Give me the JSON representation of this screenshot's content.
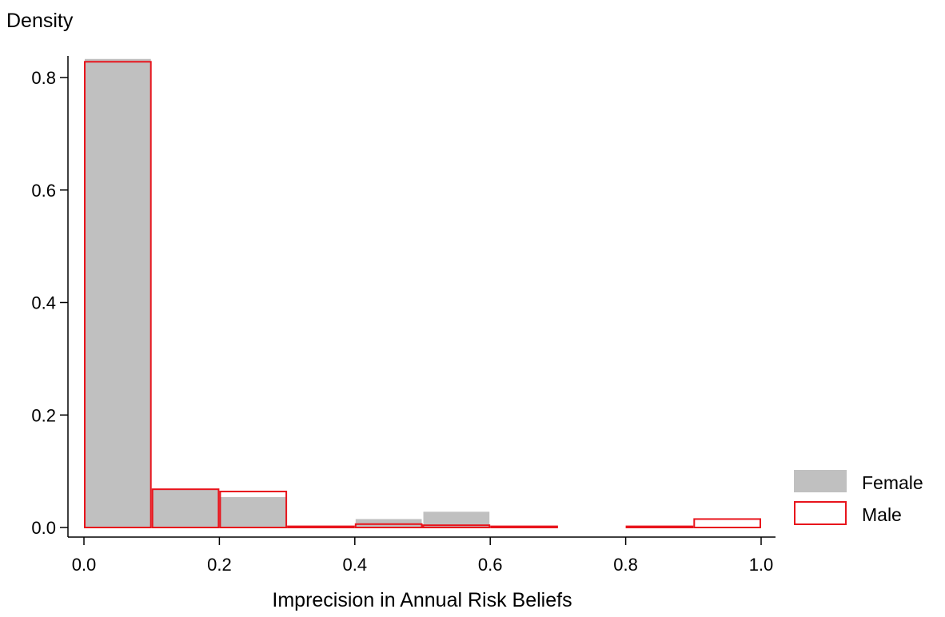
{
  "chart_data": {
    "type": "bar",
    "xlabel": "Imprecision in Annual Risk Beliefs",
    "ylabel": "Density",
    "xlim": [
      0,
      1
    ],
    "ylim": [
      0,
      0.85
    ],
    "bin_edges": [
      0.0,
      0.1,
      0.2,
      0.3,
      0.4,
      0.5,
      0.6,
      0.7,
      0.8,
      0.9,
      1.0
    ],
    "x_ticks": [
      "0.0",
      "0.2",
      "0.4",
      "0.6",
      "0.8",
      "1.0"
    ],
    "y_ticks": [
      "0.0",
      "0.2",
      "0.4",
      "0.6",
      "0.8"
    ],
    "series": [
      {
        "name": "Female",
        "style": "filled",
        "color": "#c0c0c0",
        "values": [
          0.833,
          0.067,
          0.054,
          0.003,
          0.015,
          0.028,
          0.002,
          0.0,
          0.0,
          0.0
        ]
      },
      {
        "name": "Male",
        "style": "outline",
        "color": "#e8141c",
        "values": [
          0.828,
          0.068,
          0.064,
          0.002,
          0.006,
          0.004,
          0.002,
          0.0,
          0.002,
          0.015
        ]
      }
    ],
    "legend_position": "right",
    "grid": false
  }
}
